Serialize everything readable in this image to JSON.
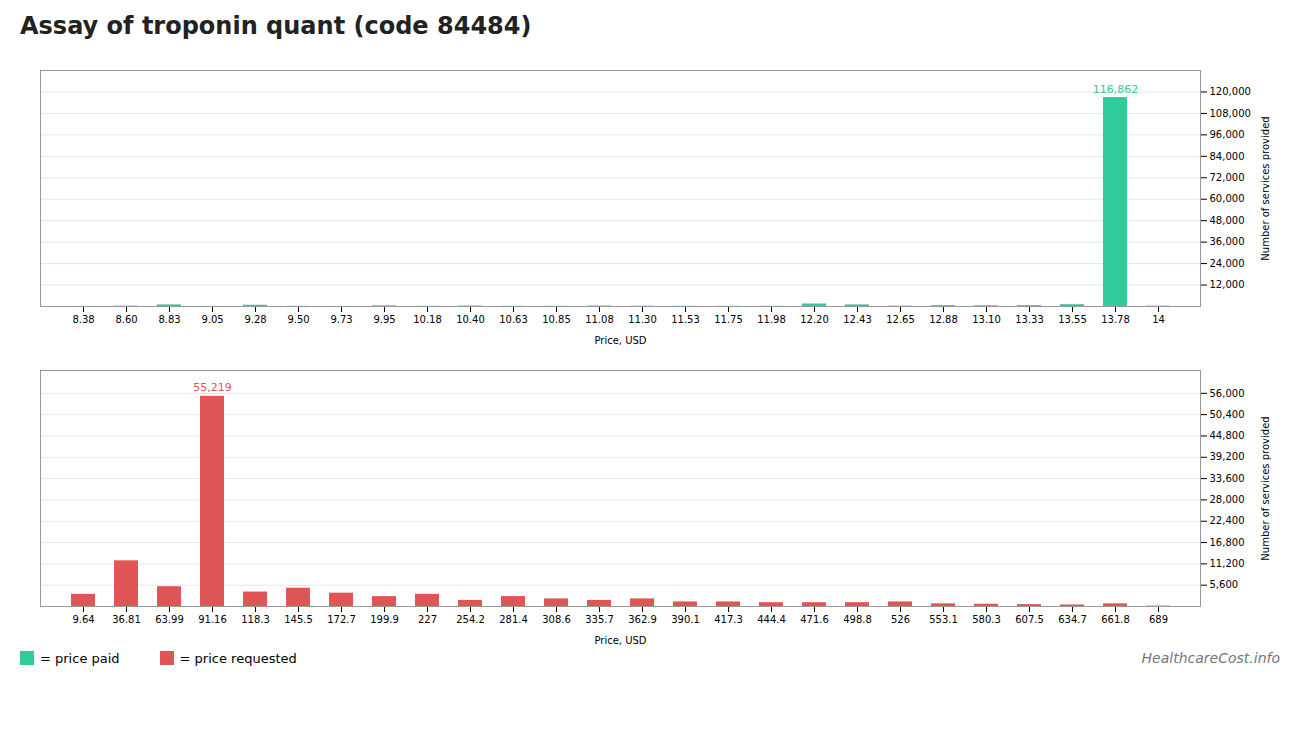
{
  "chart_data": [
    {
      "type": "bar",
      "title": "Assay of troponin quant (code 84484)",
      "xlabel": "Price, USD",
      "ylabel": "Number of services provided",
      "categories": [
        "8.38",
        "8.60",
        "8.83",
        "9.05",
        "9.28",
        "9.50",
        "9.73",
        "9.95",
        "10.18",
        "10.40",
        "10.63",
        "10.85",
        "11.08",
        "11.30",
        "11.53",
        "11.75",
        "11.98",
        "12.20",
        "12.43",
        "12.65",
        "12.88",
        "13.10",
        "13.33",
        "13.55",
        "13.78",
        "14"
      ],
      "series": [
        {
          "name": "= price paid",
          "color": "#2ecc9a",
          "values": [
            50,
            200,
            900,
            50,
            700,
            100,
            50,
            350,
            100,
            250,
            100,
            100,
            250,
            150,
            100,
            100,
            100,
            1400,
            900,
            200,
            500,
            400,
            500,
            1000,
            116862,
            200
          ]
        }
      ],
      "ylim": [
        0,
        132000
      ],
      "yticks": [
        {
          "value": 12000,
          "label": "12,000"
        },
        {
          "value": 24000,
          "label": "24,000"
        },
        {
          "value": 36000,
          "label": "36,000"
        },
        {
          "value": 48000,
          "label": "48,000"
        },
        {
          "value": 60000,
          "label": "60,000"
        },
        {
          "value": 72000,
          "label": "72,000"
        },
        {
          "value": 84000,
          "label": "84,000"
        },
        {
          "value": 96000,
          "label": "96,000"
        },
        {
          "value": 108000,
          "label": "108,000"
        },
        {
          "value": 120000,
          "label": "120,000"
        }
      ],
      "grid": true,
      "annotations": [
        {
          "text": "116,862",
          "x": "13.78",
          "y": 116862,
          "color": "#2ecc9a"
        }
      ]
    },
    {
      "type": "bar",
      "xlabel": "Price, USD",
      "ylabel": "Number of services provided",
      "categories": [
        "9.64",
        "36.81",
        "63.99",
        "91.16",
        "118.3",
        "145.5",
        "172.7",
        "199.9",
        "227",
        "254.2",
        "281.4",
        "308.6",
        "335.7",
        "362.9",
        "390.1",
        "417.3",
        "444.4",
        "471.6",
        "498.8",
        "526",
        "553.1",
        "580.3",
        "607.5",
        "634.7",
        "661.8",
        "689"
      ],
      "series": [
        {
          "name": "= price requested",
          "color": "#e05555",
          "values": [
            3200,
            12000,
            5200,
            55219,
            3800,
            4800,
            3500,
            2600,
            3200,
            1600,
            2600,
            2000,
            1600,
            2000,
            1200,
            1200,
            1000,
            1000,
            1000,
            1200,
            700,
            600,
            500,
            400,
            700,
            100
          ]
        }
      ],
      "ylim": [
        0,
        62000
      ],
      "yticks": [
        {
          "value": 5600,
          "label": "5,600"
        },
        {
          "value": 11200,
          "label": "11,200"
        },
        {
          "value": 16800,
          "label": "16,800"
        },
        {
          "value": 22400,
          "label": "22,400"
        },
        {
          "value": 28000,
          "label": "28,000"
        },
        {
          "value": 33600,
          "label": "33,600"
        },
        {
          "value": 39200,
          "label": "39,200"
        },
        {
          "value": 44800,
          "label": "44,800"
        },
        {
          "value": 50400,
          "label": "50,400"
        },
        {
          "value": 56000,
          "label": "56,000"
        }
      ],
      "grid": true,
      "legend": "bottom",
      "annotations": [
        {
          "text": "55,219",
          "x": "91.16",
          "y": 55219,
          "color": "#e05555"
        },
        {
          "text": "HealthcareCost.info",
          "color": "#777777"
        }
      ]
    }
  ]
}
